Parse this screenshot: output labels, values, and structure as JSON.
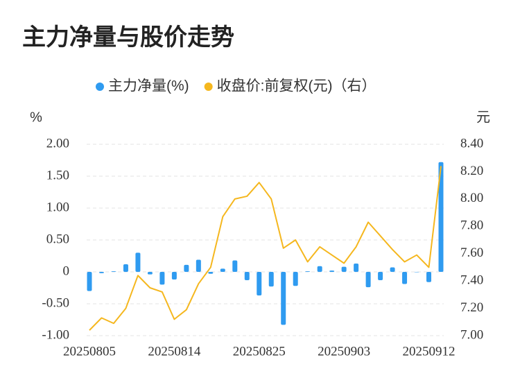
{
  "chart_data": {
    "type": "bar+line",
    "title": "主力净量与股价走势",
    "ylabel": "%",
    "y2label": "元",
    "categories": [
      "20250805",
      null,
      null,
      null,
      null,
      null,
      null,
      "20250814",
      null,
      null,
      null,
      null,
      null,
      null,
      "20250825",
      null,
      null,
      null,
      null,
      null,
      null,
      "20250903",
      null,
      null,
      null,
      null,
      null,
      null,
      "20250912",
      null
    ],
    "series": [
      {
        "name": "主力净量(%)",
        "type": "bar",
        "color": "#2f9bf0",
        "values": [
          -0.3,
          -0.02,
          0.01,
          0.12,
          0.3,
          -0.04,
          -0.2,
          -0.12,
          0.11,
          0.19,
          -0.03,
          0.05,
          0.18,
          -0.13,
          -0.37,
          -0.23,
          -0.83,
          -0.22,
          0.01,
          0.09,
          0.02,
          0.08,
          0.13,
          -0.24,
          -0.13,
          0.07,
          -0.19,
          0.0,
          -0.16,
          1.72
        ]
      },
      {
        "name": "收盘价:前复权(元)（右）",
        "type": "line",
        "axis": "y2",
        "color": "#f5b71e",
        "values": [
          7.04,
          7.13,
          7.09,
          7.2,
          7.44,
          7.35,
          7.32,
          7.12,
          7.19,
          7.38,
          7.5,
          7.87,
          8.0,
          8.02,
          8.12,
          8.0,
          7.64,
          7.7,
          7.54,
          7.65,
          7.59,
          7.53,
          7.65,
          7.83,
          7.73,
          7.63,
          7.54,
          7.59,
          7.5,
          8.24
        ]
      }
    ],
    "ylim": [
      -1,
      2
    ],
    "yticks": [
      {
        "value": -1,
        "label": "-1.00"
      },
      {
        "value": -0.5,
        "label": "-0.50"
      },
      0,
      {
        "value": 0.5,
        "label": "0.50"
      },
      {
        "value": 1,
        "label": "1.00"
      },
      {
        "value": 1.5,
        "label": "1.50"
      },
      {
        "value": 2,
        "label": "2.00"
      }
    ],
    "y2lim": [
      7,
      8.4
    ],
    "y2ticks": [
      {
        "value": 7,
        "label": "7.00"
      },
      {
        "value": 7.2,
        "label": "7.20"
      },
      {
        "value": 7.4,
        "label": "7.40"
      },
      {
        "value": 7.6,
        "label": "7.60"
      },
      {
        "value": 7.8,
        "label": "7.80"
      },
      {
        "value": 8,
        "label": "8.00"
      },
      {
        "value": 8.2,
        "label": "8.20"
      },
      {
        "value": 8.4,
        "label": "8.40"
      }
    ],
    "grid": true
  }
}
